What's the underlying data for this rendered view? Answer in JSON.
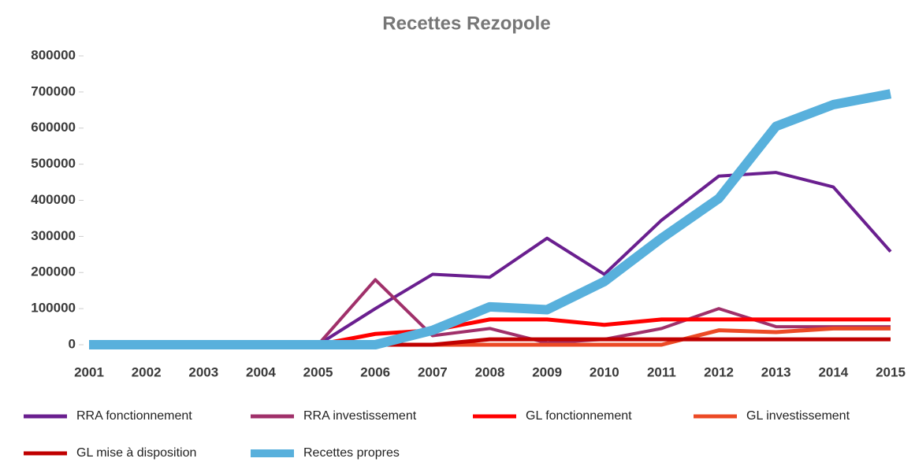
{
  "chart_data": {
    "type": "line",
    "title": "Recettes Rezopole",
    "categories": [
      "2001",
      "2002",
      "2003",
      "2004",
      "2005",
      "2006",
      "2007",
      "2008",
      "2009",
      "2010",
      "2011",
      "2012",
      "2013",
      "2014",
      "2015"
    ],
    "ylim": [
      0,
      800000
    ],
    "yticks": [
      0,
      100000,
      200000,
      300000,
      400000,
      500000,
      600000,
      700000,
      800000
    ],
    "grid": false,
    "series": [
      {
        "name": "RRA fonctionnement",
        "color": "#6a1f8f",
        "values": [
          0,
          0,
          0,
          0,
          0,
          100000,
          195000,
          187000,
          295000,
          195000,
          345000,
          467000,
          477000,
          437000,
          258000
        ]
      },
      {
        "name": "RRA investissement",
        "color": "#a0306a",
        "values": [
          0,
          0,
          0,
          0,
          0,
          180000,
          25000,
          45000,
          5000,
          15000,
          45000,
          100000,
          50000,
          50000,
          50000
        ]
      },
      {
        "name": "GL  fonctionnement",
        "color": "#ff0000",
        "values": [
          0,
          0,
          0,
          0,
          0,
          30000,
          40000,
          70000,
          70000,
          55000,
          70000,
          70000,
          70000,
          70000,
          70000
        ]
      },
      {
        "name": "GL investissement",
        "color": "#ec4a25",
        "values": [
          0,
          0,
          0,
          0,
          0,
          0,
          0,
          0,
          0,
          0,
          0,
          40000,
          35000,
          45000,
          45000
        ]
      },
      {
        "name": "GL mise à disposition",
        "color": "#c00000",
        "values": [
          0,
          0,
          0,
          0,
          0,
          0,
          0,
          15000,
          15000,
          15000,
          15000,
          15000,
          15000,
          15000,
          15000
        ]
      },
      {
        "name": "Recettes propres",
        "color": "#58b0dc",
        "values": [
          0,
          0,
          0,
          0,
          0,
          0,
          40000,
          105000,
          97000,
          175000,
          295000,
          405000,
          605000,
          665000,
          695000
        ]
      }
    ]
  }
}
